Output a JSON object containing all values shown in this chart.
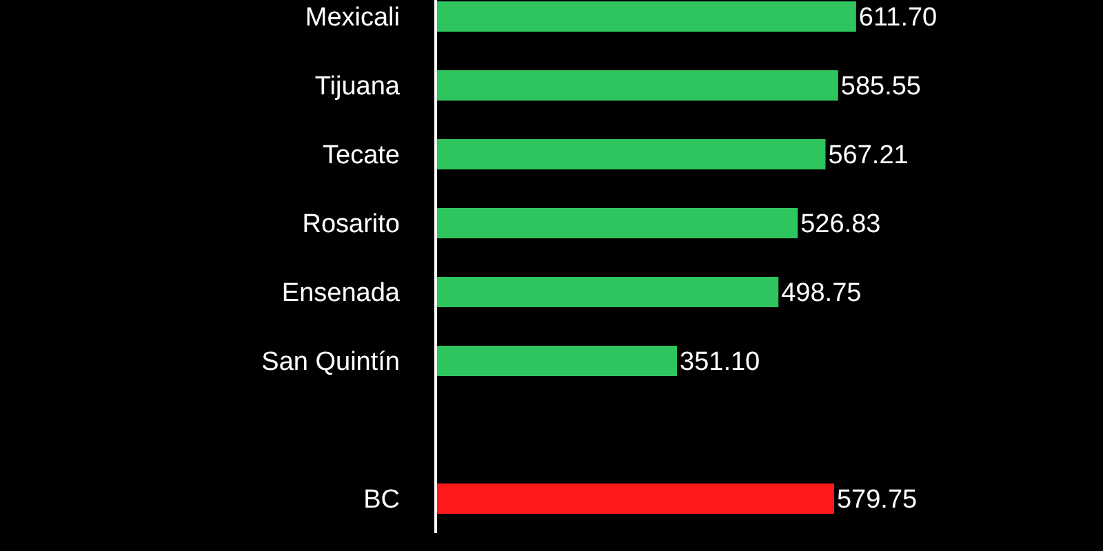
{
  "chart_data": {
    "type": "bar",
    "orientation": "horizontal",
    "categories": [
      "Mexicali",
      "Tijuana",
      "Tecate",
      "Rosarito",
      "Ensenada",
      "San Quintín",
      null,
      "BC"
    ],
    "values": [
      611.7,
      585.55,
      567.21,
      526.83,
      498.75,
      351.1,
      null,
      579.75
    ],
    "colors": [
      "#2ec45e",
      "#2ec45e",
      "#2ec45e",
      "#2ec45e",
      "#2ec45e",
      "#2ec45e",
      "#2ec45e",
      "#ff1a1a"
    ],
    "value_labels": [
      "611.70",
      "585.55",
      "567.21",
      "526.83",
      "498.75",
      "351.10",
      null,
      "579.75"
    ]
  }
}
